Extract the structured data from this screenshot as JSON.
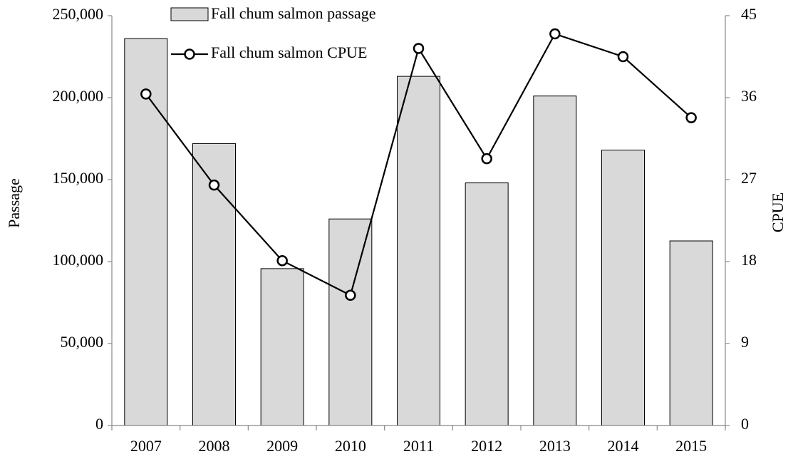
{
  "chart_data": {
    "type": "bar-line",
    "categories": [
      "2007",
      "2008",
      "2009",
      "2010",
      "2011",
      "2012",
      "2013",
      "2014",
      "2015"
    ],
    "ylabel": "Passage",
    "y2label": "CPUE",
    "ylim": [
      0,
      250000
    ],
    "yticks": [
      0,
      {
        "value": 50000,
        "label": "50,000"
      },
      {
        "value": 100000,
        "label": "100,000"
      },
      {
        "value": 150000,
        "label": "150,000"
      },
      {
        "value": 200000,
        "label": "200,000"
      },
      {
        "value": 250000,
        "label": "250,000"
      }
    ],
    "y2lim": [
      0,
      45
    ],
    "y2ticks": [
      0,
      9,
      18,
      27,
      36,
      45
    ],
    "series": [
      {
        "name": "Fall chum salmon passage",
        "type": "bar",
        "color": "#d9d9d9",
        "values": [
          236000,
          172000,
          95700,
          126000,
          213000,
          148000,
          201000,
          168000,
          112600
        ]
      },
      {
        "name": "Fall chum salmon CPUE",
        "type": "line",
        "axis": "y2",
        "color": "#000000",
        "values": [
          36.4,
          26.4,
          18.1,
          14.3,
          41.4,
          29.3,
          43.0,
          40.5,
          33.8
        ]
      }
    ]
  }
}
